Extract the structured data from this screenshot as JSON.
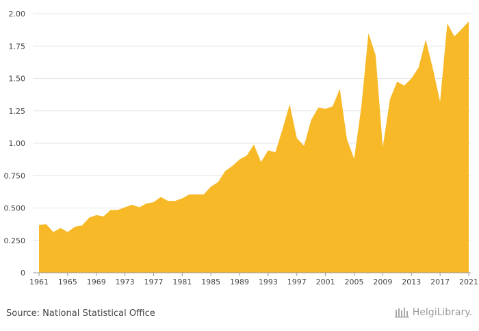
{
  "chart_data": {
    "type": "area",
    "title": "",
    "xlabel": "",
    "ylabel": "",
    "ylim": [
      0,
      2
    ],
    "y_ticks": [
      0,
      0.25,
      0.5,
      0.75,
      1,
      1.25,
      1.5,
      1.75,
      2
    ],
    "y_tick_labels": [
      "0",
      "0.250",
      "0.500",
      "0.750",
      "1.00",
      "1.25",
      "1.50",
      "1.75",
      "2.00"
    ],
    "x_ticks": [
      1961,
      1965,
      1969,
      1973,
      1977,
      1981,
      1985,
      1989,
      1993,
      1997,
      2001,
      2005,
      2009,
      2013,
      2017,
      2021
    ],
    "x_tick_labels": [
      "1961",
      "1965",
      "1969",
      "1973",
      "1977",
      "1981",
      "1985",
      "1989",
      "1993",
      "1997",
      "2001",
      "2005",
      "2009",
      "2013",
      "2017",
      "2021"
    ],
    "fill_color": "#f7b928",
    "grid": true,
    "series": [
      {
        "name": "value",
        "x": [
          1961,
          1962,
          1963,
          1964,
          1965,
          1966,
          1967,
          1968,
          1969,
          1970,
          1971,
          1972,
          1973,
          1974,
          1975,
          1976,
          1977,
          1978,
          1979,
          1980,
          1981,
          1982,
          1983,
          1984,
          1985,
          1986,
          1987,
          1988,
          1989,
          1990,
          1991,
          1992,
          1993,
          1994,
          1995,
          1996,
          1997,
          1998,
          1999,
          2000,
          2001,
          2002,
          2003,
          2004,
          2005,
          2006,
          2007,
          2008,
          2009,
          2010,
          2011,
          2012,
          2013,
          2014,
          2015,
          2016,
          2017,
          2018,
          2019,
          2020,
          2021
        ],
        "values": [
          0.37,
          0.375,
          0.315,
          0.345,
          0.315,
          0.355,
          0.365,
          0.425,
          0.445,
          0.435,
          0.485,
          0.485,
          0.505,
          0.525,
          0.505,
          0.535,
          0.545,
          0.585,
          0.555,
          0.555,
          0.575,
          0.605,
          0.605,
          0.605,
          0.665,
          0.7,
          0.785,
          0.825,
          0.875,
          0.905,
          0.99,
          0.855,
          0.945,
          0.93,
          1.11,
          1.3,
          1.04,
          0.98,
          1.18,
          1.275,
          1.265,
          1.285,
          1.42,
          1.03,
          0.88,
          1.28,
          1.85,
          1.68,
          0.97,
          1.34,
          1.475,
          1.445,
          1.5,
          1.585,
          1.8,
          1.575,
          1.32,
          1.925,
          1.825,
          1.88,
          1.94
        ]
      }
    ]
  },
  "footer": {
    "source": "Source: National Statistical Office",
    "brand": "HelgiLibrary."
  }
}
